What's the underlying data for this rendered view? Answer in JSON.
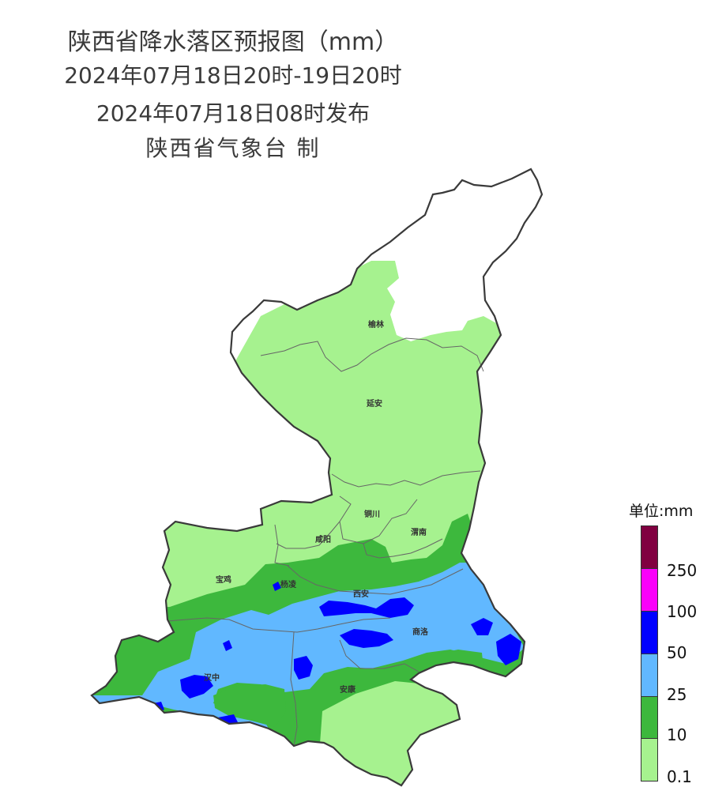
{
  "header": {
    "title": "陕西省降水落区预报图（mm）",
    "period": "2024年07月18日20时-19日20时",
    "issued": "2024年07月18日08时发布",
    "producer": "陕西省气象台 制"
  },
  "cities": [
    "榆林",
    "延安",
    "铜川",
    "咸阳",
    "渭南",
    "宝鸡",
    "杨凌",
    "西安",
    "商洛",
    "汉中",
    "安康"
  ],
  "legend": {
    "unit": "单位:mm",
    "levels": [
      {
        "label": "0.1",
        "color": "#a6f28f"
      },
      {
        "label": "10",
        "color": "#3db83d"
      },
      {
        "label": "25",
        "color": "#61b8ff"
      },
      {
        "label": "50",
        "color": "#0000ff"
      },
      {
        "label": "100",
        "color": "#fa00fa"
      },
      {
        "label": "250",
        "color": "#800040"
      }
    ]
  }
}
